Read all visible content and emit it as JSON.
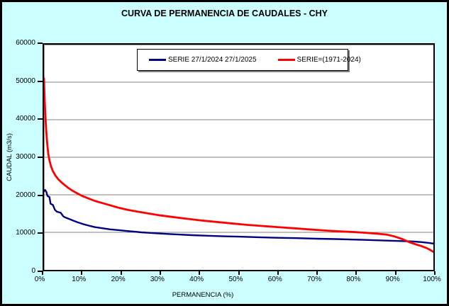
{
  "colors": {
    "background": "#CCFFFF",
    "plot_background": "#FFFFFF",
    "border": "#000000",
    "gridline": "#808080",
    "series1": "#000080",
    "series2": "#FF0000"
  },
  "chart_data": {
    "type": "line",
    "title": "CURVA DE PERMANENCIA DE CAUDALES - CHY",
    "xlabel": "PERMANENCIA (%)",
    "ylabel": "CAUDAL (m3/s)",
    "xlim": [
      0,
      100
    ],
    "ylim": [
      0,
      60000
    ],
    "x_tick_labels": [
      "0%",
      "10%",
      "20%",
      "30%",
      "40%",
      "50%",
      "60%",
      "70%",
      "80%",
      "90%",
      "100%"
    ],
    "y_tick_values": [
      0,
      10000,
      20000,
      30000,
      40000,
      50000,
      60000
    ],
    "grid": "horizontal",
    "legend_position": "top-center",
    "series": [
      {
        "name": "SERIE 27/1/2024 27/1/2025",
        "color": "#000080",
        "line_width": 2.4,
        "points": [
          [
            0,
            20900
          ],
          [
            0.3,
            21300
          ],
          [
            0.6,
            20800
          ],
          [
            0.9,
            19700
          ],
          [
            1.4,
            19400
          ],
          [
            1.7,
            17600
          ],
          [
            2.3,
            17300
          ],
          [
            2.8,
            16000
          ],
          [
            3.3,
            15500
          ],
          [
            4.3,
            15200
          ],
          [
            5,
            14200
          ],
          [
            5.6,
            13900
          ],
          [
            6.6,
            13500
          ],
          [
            7.6,
            13100
          ],
          [
            8.6,
            12700
          ],
          [
            10,
            12200
          ],
          [
            11.5,
            11800
          ],
          [
            13,
            11400
          ],
          [
            15,
            11100
          ],
          [
            17,
            10800
          ],
          [
            19,
            10600
          ],
          [
            21,
            10400
          ],
          [
            23,
            10200
          ],
          [
            25,
            10000
          ],
          [
            28,
            9800
          ],
          [
            31,
            9600
          ],
          [
            34,
            9450
          ],
          [
            38,
            9250
          ],
          [
            42,
            9100
          ],
          [
            46,
            8950
          ],
          [
            50,
            8850
          ],
          [
            55,
            8700
          ],
          [
            60,
            8550
          ],
          [
            65,
            8450
          ],
          [
            70,
            8300
          ],
          [
            75,
            8200
          ],
          [
            80,
            8050
          ],
          [
            84,
            7950
          ],
          [
            88,
            7800
          ],
          [
            91,
            7700
          ],
          [
            93,
            7650
          ],
          [
            95,
            7550
          ],
          [
            97,
            7400
          ],
          [
            99,
            7150
          ],
          [
            100,
            7000
          ]
        ]
      },
      {
        "name": "SERIE=(1971-2024)",
        "color": "#FF0000",
        "line_width": 2.8,
        "points": [
          [
            0,
            51000
          ],
          [
            0.15,
            46000
          ],
          [
            0.3,
            42500
          ],
          [
            0.5,
            38500
          ],
          [
            0.7,
            35500
          ],
          [
            0.9,
            33000
          ],
          [
            1.1,
            31000
          ],
          [
            1.4,
            29200
          ],
          [
            1.8,
            27600
          ],
          [
            2.3,
            26300
          ],
          [
            2.9,
            25200
          ],
          [
            3.6,
            24200
          ],
          [
            4.4,
            23400
          ],
          [
            5.3,
            22600
          ],
          [
            6.3,
            21800
          ],
          [
            7.3,
            21100
          ],
          [
            8.5,
            20400
          ],
          [
            10,
            19600
          ],
          [
            11.5,
            19000
          ],
          [
            13,
            18400
          ],
          [
            15,
            17800
          ],
          [
            17,
            17200
          ],
          [
            19,
            16600
          ],
          [
            21.5,
            16000
          ],
          [
            24,
            15500
          ],
          [
            27,
            15000
          ],
          [
            30,
            14500
          ],
          [
            33,
            14100
          ],
          [
            36,
            13700
          ],
          [
            40,
            13200
          ],
          [
            44,
            12800
          ],
          [
            48,
            12400
          ],
          [
            52,
            12000
          ],
          [
            56,
            11700
          ],
          [
            60,
            11400
          ],
          [
            64,
            11100
          ],
          [
            68,
            10800
          ],
          [
            72,
            10500
          ],
          [
            76,
            10250
          ],
          [
            80,
            10050
          ],
          [
            83,
            9850
          ],
          [
            86,
            9600
          ],
          [
            88,
            9400
          ],
          [
            90,
            8900
          ],
          [
            92,
            8200
          ],
          [
            93,
            7750
          ],
          [
            94,
            7300
          ],
          [
            95.5,
            6800
          ],
          [
            97,
            6300
          ],
          [
            98.3,
            5800
          ],
          [
            99.2,
            5300
          ],
          [
            100,
            4800
          ]
        ]
      }
    ]
  }
}
